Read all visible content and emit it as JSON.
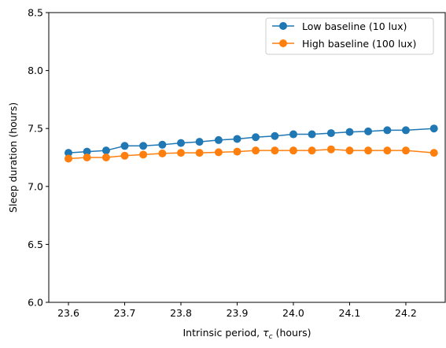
{
  "chart_data": {
    "type": "line",
    "title": "",
    "xlabel": "Intrinsic period, ",
    "xlabel_symbol": "τ",
    "xlabel_subscript": "c",
    "xlabel_suffix": " (hours)",
    "ylabel": "Sleep duration (hours)",
    "xlim": [
      23.565,
      24.27
    ],
    "ylim": [
      6.0,
      8.5
    ],
    "xticks": [
      23.6,
      23.7,
      23.8,
      23.9,
      24.0,
      24.1,
      24.2
    ],
    "xtick_labels": [
      "23.6",
      "23.7",
      "23.8",
      "23.9",
      "24.0",
      "24.1",
      "24.2"
    ],
    "yticks": [
      6.0,
      6.5,
      7.0,
      7.5,
      8.0,
      8.5
    ],
    "ytick_labels": [
      "6.0",
      "6.5",
      "7.0",
      "7.5",
      "8.0",
      "8.5"
    ],
    "grid": false,
    "legend_position": "top-right",
    "x": [
      23.6,
      23.633,
      23.667,
      23.7,
      23.733,
      23.767,
      23.8,
      23.833,
      23.867,
      23.9,
      23.933,
      23.967,
      24.0,
      24.033,
      24.067,
      24.1,
      24.133,
      24.167,
      24.2,
      24.25
    ],
    "series": [
      {
        "name": "Low baseline (10 lux)",
        "color": "#1f77b4",
        "values": [
          7.29,
          7.3,
          7.31,
          7.35,
          7.35,
          7.36,
          7.375,
          7.385,
          7.4,
          7.41,
          7.425,
          7.435,
          7.45,
          7.45,
          7.46,
          7.47,
          7.475,
          7.485,
          7.485,
          7.5
        ]
      },
      {
        "name": "High baseline (100 lux)",
        "color": "#ff7f0e",
        "values": [
          7.24,
          7.25,
          7.25,
          7.265,
          7.275,
          7.285,
          7.29,
          7.29,
          7.295,
          7.3,
          7.31,
          7.31,
          7.31,
          7.31,
          7.32,
          7.31,
          7.31,
          7.31,
          7.31,
          7.29
        ]
      }
    ]
  }
}
